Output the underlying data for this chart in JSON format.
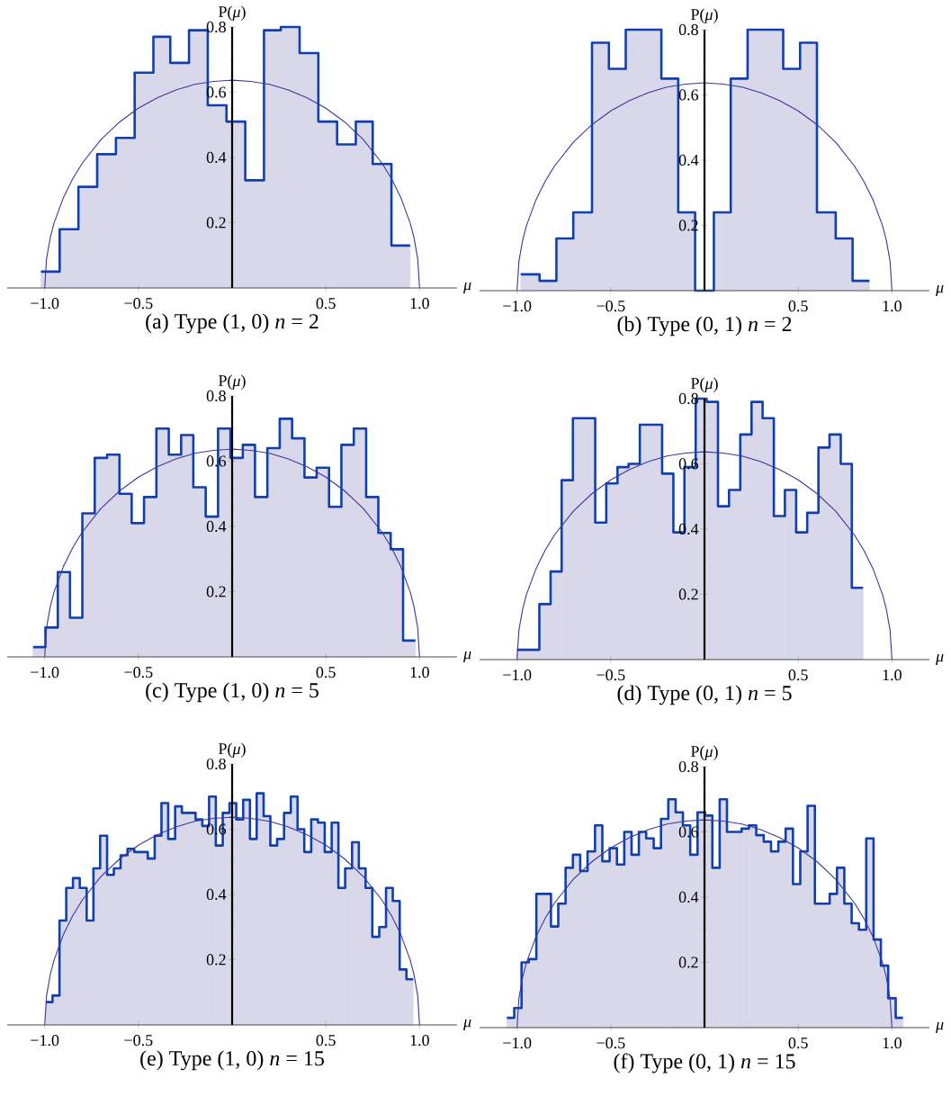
{
  "chart_data": [
    {
      "type": "histogram",
      "title": "(a) Type (1, 0) *n* = 2",
      "xlabel": "*μ*",
      "ylabel": "P(*μ*)",
      "xlim": [
        -1.2,
        1.2
      ],
      "ylim": [
        0,
        0.8
      ],
      "xticks": [
        {
          "value": -1.0,
          "label": "−1.0"
        },
        {
          "value": -0.5,
          "label": "−0.5"
        },
        {
          "value": 0.5,
          "label": "0.5"
        },
        {
          "value": 1.0,
          "label": "1.0"
        }
      ],
      "yticks": [
        0.2,
        0.4,
        0.6,
        0.8
      ],
      "series": [
        {
          "type": "histogram",
          "color": "#d8d8ea",
          "bins": [
            -1.02,
            -0.92,
            -0.82,
            -0.72,
            -0.62,
            -0.52,
            -0.42,
            -0.33,
            -0.23,
            -0.13,
            -0.03,
            0.07,
            0.17,
            0.26,
            0.36,
            0.46,
            0.56,
            0.66,
            0.75,
            0.85,
            0.95
          ],
          "values": [
            0.05,
            0.18,
            0.31,
            0.41,
            0.46,
            0.66,
            0.77,
            0.69,
            0.79,
            0.56,
            0.51,
            0.33,
            0.79,
            0.8,
            0.72,
            0.51,
            0.44,
            0.51,
            0.38,
            0.13
          ]
        },
        {
          "type": "step",
          "color": "#1040b0",
          "x": [
            -1.02,
            -0.92,
            -0.82,
            -0.72,
            -0.62,
            -0.52,
            -0.42,
            -0.33,
            -0.23,
            -0.13,
            -0.03,
            0.07,
            0.17,
            0.26,
            0.36,
            0.46,
            0.56,
            0.66,
            0.75,
            0.85,
            0.95
          ],
          "values": [
            0.05,
            0.18,
            0.31,
            0.41,
            0.46,
            0.66,
            0.77,
            0.69,
            0.79,
            0.56,
            0.51,
            0.33,
            0.79,
            0.8,
            0.72,
            0.51,
            0.44,
            0.51,
            0.38,
            0.13,
            0.13
          ]
        },
        {
          "type": "line",
          "color": "#3838a0",
          "x": [
            -1,
            -0.99,
            -0.97,
            -0.95,
            -0.9,
            -0.85,
            -0.8,
            -0.7,
            -0.6,
            -0.5,
            -0.4,
            -0.3,
            -0.2,
            -0.1,
            0,
            0.1,
            0.2,
            0.3,
            0.4,
            0.5,
            0.6,
            0.7,
            0.8,
            0.85,
            0.9,
            0.95,
            0.97,
            0.99,
            1
          ],
          "values": [
            0,
            0.09,
            0.155,
            0.199,
            0.277,
            0.335,
            0.382,
            0.455,
            0.509,
            0.551,
            0.583,
            0.607,
            0.624,
            0.633,
            0.637,
            0.633,
            0.624,
            0.607,
            0.583,
            0.551,
            0.509,
            0.455,
            0.382,
            0.335,
            0.277,
            0.199,
            0.155,
            0.09,
            0
          ]
        }
      ]
    },
    {
      "type": "histogram",
      "title": "(b) Type (0, 1) *n* = 2",
      "xlabel": "*μ*",
      "ylabel": "P(*μ*)",
      "xlim": [
        -1.2,
        1.2
      ],
      "ylim": [
        0,
        0.8
      ],
      "xticks": [
        {
          "value": -1.0,
          "label": "−1.0"
        },
        {
          "value": -0.5,
          "label": "−0.5"
        },
        {
          "value": 0.5,
          "label": "0.5"
        },
        {
          "value": 1.0,
          "label": "1.0"
        }
      ],
      "yticks": [
        0.2,
        0.4,
        0.6,
        0.8
      ],
      "series": [
        {
          "type": "histogram",
          "color": "#d8d8ea",
          "bins": [
            -0.98,
            -0.88,
            -0.79,
            -0.7,
            -0.6,
            -0.51,
            -0.42,
            -0.33,
            -0.23,
            -0.14,
            -0.05,
            0.05,
            0.14,
            0.23,
            0.33,
            0.42,
            0.51,
            0.6,
            0.7,
            0.79,
            0.88
          ],
          "values": [
            0.05,
            0.03,
            0.16,
            0.24,
            0.76,
            0.68,
            0.8,
            0.8,
            0.65,
            0.24,
            0,
            0.24,
            0.65,
            0.8,
            0.8,
            0.68,
            0.76,
            0.24,
            0.16,
            0.03
          ]
        },
        {
          "type": "step",
          "color": "#1040b0",
          "x": [
            -0.98,
            -0.88,
            -0.79,
            -0.7,
            -0.6,
            -0.51,
            -0.42,
            -0.33,
            -0.23,
            -0.14,
            -0.05,
            0.05,
            0.14,
            0.23,
            0.33,
            0.42,
            0.51,
            0.6,
            0.7,
            0.79,
            0.88
          ],
          "values": [
            0.05,
            0.03,
            0.16,
            0.24,
            0.76,
            0.68,
            0.8,
            0.8,
            0.65,
            0.24,
            0,
            0.24,
            0.65,
            0.8,
            0.8,
            0.68,
            0.76,
            0.24,
            0.16,
            0.03,
            0.03
          ]
        },
        {
          "type": "line",
          "color": "#3838a0",
          "x": [
            -1,
            -0.99,
            -0.97,
            -0.95,
            -0.9,
            -0.85,
            -0.8,
            -0.7,
            -0.6,
            -0.5,
            -0.4,
            -0.3,
            -0.2,
            -0.1,
            0,
            0.1,
            0.2,
            0.3,
            0.4,
            0.5,
            0.6,
            0.7,
            0.8,
            0.85,
            0.9,
            0.95,
            0.97,
            0.99,
            1
          ],
          "values": [
            0,
            0.09,
            0.155,
            0.199,
            0.277,
            0.335,
            0.382,
            0.455,
            0.509,
            0.551,
            0.583,
            0.607,
            0.624,
            0.633,
            0.637,
            0.633,
            0.624,
            0.607,
            0.583,
            0.551,
            0.509,
            0.455,
            0.382,
            0.335,
            0.277,
            0.199,
            0.155,
            0.09,
            0
          ]
        }
      ]
    },
    {
      "type": "histogram",
      "title": "(c) Type (1, 0) *n* = 5",
      "xlabel": "*μ*",
      "ylabel": "P(*μ*)",
      "xlim": [
        -1.2,
        1.2
      ],
      "ylim": [
        0,
        0.8
      ],
      "xticks": [
        {
          "value": -1.0,
          "label": "−1.0"
        },
        {
          "value": -0.5,
          "label": "−0.5"
        },
        {
          "value": 0.5,
          "label": "0.5"
        },
        {
          "value": 1.0,
          "label": "1.0"
        }
      ],
      "yticks": [
        0.2,
        0.4,
        0.6,
        0.8
      ],
      "series": [
        {
          "type": "histogram",
          "color": "#d8d8ea",
          "bins": [
            -1.062,
            -0.996,
            -0.93,
            -0.865,
            -0.799,
            -0.733,
            -0.667,
            -0.601,
            -0.536,
            -0.47,
            -0.404,
            -0.338,
            -0.272,
            -0.207,
            -0.141,
            -0.075,
            -0.009,
            0.057,
            0.122,
            0.188,
            0.254,
            0.32,
            0.386,
            0.451,
            0.517,
            0.583,
            0.649,
            0.715,
            0.78,
            0.846,
            0.912,
            0.978
          ],
          "values": [
            0.03,
            0.09,
            0.26,
            0.12,
            0.44,
            0.61,
            0.62,
            0.5,
            0.41,
            0.49,
            0.7,
            0.62,
            0.68,
            0.52,
            0.43,
            0.7,
            0.61,
            0.65,
            0.49,
            0.64,
            0.73,
            0.67,
            0.55,
            0.58,
            0.46,
            0.65,
            0.7,
            0.49,
            0.38,
            0.33,
            0.05
          ]
        },
        {
          "type": "step",
          "color": "#1040b0",
          "x": [
            -1.062,
            -0.996,
            -0.93,
            -0.865,
            -0.799,
            -0.733,
            -0.667,
            -0.601,
            -0.536,
            -0.47,
            -0.404,
            -0.338,
            -0.272,
            -0.207,
            -0.141,
            -0.075,
            -0.009,
            0.057,
            0.122,
            0.188,
            0.254,
            0.32,
            0.386,
            0.451,
            0.517,
            0.583,
            0.649,
            0.715,
            0.78,
            0.846,
            0.912,
            0.978
          ],
          "values": [
            0.03,
            0.09,
            0.26,
            0.12,
            0.44,
            0.61,
            0.62,
            0.5,
            0.41,
            0.49,
            0.7,
            0.62,
            0.68,
            0.52,
            0.43,
            0.7,
            0.61,
            0.65,
            0.49,
            0.64,
            0.73,
            0.67,
            0.55,
            0.58,
            0.46,
            0.65,
            0.7,
            0.49,
            0.38,
            0.33,
            0.05,
            0.05
          ]
        },
        {
          "type": "line",
          "color": "#3838a0",
          "x": [
            -1,
            -0.99,
            -0.97,
            -0.95,
            -0.9,
            -0.85,
            -0.8,
            -0.7,
            -0.6,
            -0.5,
            -0.4,
            -0.3,
            -0.2,
            -0.1,
            0,
            0.1,
            0.2,
            0.3,
            0.4,
            0.5,
            0.6,
            0.7,
            0.8,
            0.85,
            0.9,
            0.95,
            0.97,
            0.99,
            1
          ],
          "values": [
            0,
            0.09,
            0.155,
            0.199,
            0.277,
            0.335,
            0.382,
            0.455,
            0.509,
            0.551,
            0.583,
            0.607,
            0.624,
            0.633,
            0.637,
            0.633,
            0.624,
            0.607,
            0.583,
            0.551,
            0.509,
            0.455,
            0.382,
            0.335,
            0.277,
            0.199,
            0.155,
            0.09,
            0
          ]
        }
      ]
    },
    {
      "type": "histogram",
      "title": "(d) Type (0, 1) *n* = 5",
      "xlabel": "*μ*",
      "ylabel": "P(*μ*)",
      "xlim": [
        -1.2,
        1.2
      ],
      "ylim": [
        0,
        0.8
      ],
      "xticks": [
        {
          "value": -1.0,
          "label": "−1.0"
        },
        {
          "value": -0.5,
          "label": "−0.5"
        },
        {
          "value": 0.5,
          "label": "0.5"
        },
        {
          "value": 1.0,
          "label": "1.0"
        }
      ],
      "yticks": [
        0.2,
        0.4,
        0.6,
        0.8
      ],
      "series": [
        {
          "type": "histogram",
          "color": "#d8d8ea",
          "bins": [
            -1.0,
            -0.94,
            -0.881,
            -0.821,
            -0.762,
            -0.702,
            -0.643,
            -0.583,
            -0.524,
            -0.464,
            -0.405,
            -0.345,
            -0.285,
            -0.226,
            -0.166,
            -0.107,
            -0.047,
            0.012,
            0.072,
            0.131,
            0.191,
            0.251,
            0.31,
            0.37,
            0.429,
            0.489,
            0.548,
            0.608,
            0.667,
            0.727,
            0.786,
            0.846
          ],
          "values": [
            0.03,
            0.03,
            0.17,
            0.27,
            0.55,
            0.74,
            0.74,
            0.42,
            0.54,
            0.59,
            0.6,
            0.72,
            0.72,
            0.57,
            0.39,
            0.59,
            0.8,
            0.79,
            0.47,
            0.52,
            0.69,
            0.79,
            0.74,
            0.44,
            0.52,
            0.39,
            0.45,
            0.65,
            0.69,
            0.6,
            0.22
          ]
        },
        {
          "type": "step",
          "color": "#1040b0",
          "x": [
            -1.0,
            -0.94,
            -0.881,
            -0.821,
            -0.762,
            -0.702,
            -0.643,
            -0.583,
            -0.524,
            -0.464,
            -0.405,
            -0.345,
            -0.285,
            -0.226,
            -0.166,
            -0.107,
            -0.047,
            0.012,
            0.072,
            0.131,
            0.191,
            0.251,
            0.31,
            0.37,
            0.429,
            0.489,
            0.548,
            0.608,
            0.667,
            0.727,
            0.786,
            0.846
          ],
          "values": [
            0.03,
            0.03,
            0.17,
            0.27,
            0.55,
            0.74,
            0.74,
            0.42,
            0.54,
            0.59,
            0.6,
            0.72,
            0.72,
            0.57,
            0.39,
            0.59,
            0.8,
            0.79,
            0.47,
            0.52,
            0.69,
            0.79,
            0.74,
            0.44,
            0.52,
            0.39,
            0.45,
            0.65,
            0.69,
            0.6,
            0.22,
            0.22
          ]
        },
        {
          "type": "line",
          "color": "#3838a0",
          "x": [
            -1,
            -0.99,
            -0.97,
            -0.95,
            -0.9,
            -0.85,
            -0.8,
            -0.7,
            -0.6,
            -0.5,
            -0.4,
            -0.3,
            -0.2,
            -0.1,
            0,
            0.1,
            0.2,
            0.3,
            0.4,
            0.5,
            0.6,
            0.7,
            0.8,
            0.85,
            0.9,
            0.95,
            0.97,
            0.99,
            1
          ],
          "values": [
            0,
            0.09,
            0.155,
            0.199,
            0.277,
            0.335,
            0.382,
            0.455,
            0.509,
            0.551,
            0.583,
            0.607,
            0.624,
            0.633,
            0.637,
            0.633,
            0.624,
            0.607,
            0.583,
            0.551,
            0.509,
            0.455,
            0.382,
            0.335,
            0.277,
            0.199,
            0.155,
            0.09,
            0
          ]
        }
      ]
    },
    {
      "type": "histogram",
      "title": "(e) Type (1, 0) *n* = 15",
      "xlabel": "*μ*",
      "ylabel": "P(*μ*)",
      "xlim": [
        -1.2,
        1.2
      ],
      "ylim": [
        0,
        0.8
      ],
      "xticks": [
        {
          "value": -1.0,
          "label": "−1.0"
        },
        {
          "value": -0.5,
          "label": "−0.5"
        },
        {
          "value": 0.5,
          "label": "0.5"
        },
        {
          "value": 1.0,
          "label": "1.0"
        }
      ],
      "yticks": [
        0.2,
        0.4,
        0.6,
        0.8
      ],
      "series": [
        {
          "type": "histogram",
          "color": "#d8d8ea",
          "bins": [
            -0.994,
            -0.958,
            -0.921,
            -0.885,
            -0.849,
            -0.813,
            -0.776,
            -0.74,
            -0.704,
            -0.667,
            -0.631,
            -0.595,
            -0.558,
            -0.522,
            -0.486,
            -0.45,
            -0.413,
            -0.377,
            -0.341,
            -0.304,
            -0.268,
            -0.232,
            -0.195,
            -0.159,
            -0.123,
            -0.087,
            -0.05,
            -0.014,
            0.022,
            0.059,
            0.095,
            0.131,
            0.168,
            0.204,
            0.24,
            0.277,
            0.313,
            0.349,
            0.385,
            0.422,
            0.458,
            0.494,
            0.531,
            0.567,
            0.603,
            0.64,
            0.676,
            0.712,
            0.748,
            0.785,
            0.821,
            0.857,
            0.894,
            0.93,
            0.966
          ],
          "values": [
            0.07,
            0.09,
            0.32,
            0.42,
            0.45,
            0.42,
            0.32,
            0.48,
            0.58,
            0.46,
            0.48,
            0.52,
            0.54,
            0.53,
            0.53,
            0.51,
            0.58,
            0.68,
            0.57,
            0.67,
            0.65,
            0.65,
            0.63,
            0.61,
            0.7,
            0.55,
            0.65,
            0.68,
            0.63,
            0.69,
            0.57,
            0.71,
            0.64,
            0.55,
            0.57,
            0.65,
            0.7,
            0.6,
            0.53,
            0.63,
            0.62,
            0.53,
            0.62,
            0.42,
            0.48,
            0.56,
            0.48,
            0.42,
            0.27,
            0.3,
            0.42,
            0.38,
            0.17,
            0.14
          ]
        },
        {
          "type": "step",
          "color": "#1040b0",
          "x": [
            -0.994,
            -0.958,
            -0.921,
            -0.885,
            -0.849,
            -0.813,
            -0.776,
            -0.74,
            -0.704,
            -0.667,
            -0.631,
            -0.595,
            -0.558,
            -0.522,
            -0.486,
            -0.45,
            -0.413,
            -0.377,
            -0.341,
            -0.304,
            -0.268,
            -0.232,
            -0.195,
            -0.159,
            -0.123,
            -0.087,
            -0.05,
            -0.014,
            0.022,
            0.059,
            0.095,
            0.131,
            0.168,
            0.204,
            0.24,
            0.277,
            0.313,
            0.349,
            0.385,
            0.422,
            0.458,
            0.494,
            0.531,
            0.567,
            0.603,
            0.64,
            0.676,
            0.712,
            0.748,
            0.785,
            0.821,
            0.857,
            0.894,
            0.93,
            0.966
          ],
          "values": [
            0.07,
            0.09,
            0.32,
            0.42,
            0.45,
            0.42,
            0.32,
            0.48,
            0.58,
            0.46,
            0.48,
            0.52,
            0.54,
            0.53,
            0.53,
            0.51,
            0.58,
            0.68,
            0.57,
            0.67,
            0.65,
            0.65,
            0.63,
            0.61,
            0.7,
            0.55,
            0.65,
            0.68,
            0.63,
            0.69,
            0.57,
            0.71,
            0.64,
            0.55,
            0.57,
            0.65,
            0.7,
            0.6,
            0.53,
            0.63,
            0.62,
            0.53,
            0.62,
            0.42,
            0.48,
            0.56,
            0.48,
            0.42,
            0.27,
            0.3,
            0.42,
            0.38,
            0.17,
            0.14,
            0.14
          ]
        },
        {
          "type": "line",
          "color": "#3838a0",
          "x": [
            -1,
            -0.99,
            -0.97,
            -0.95,
            -0.9,
            -0.85,
            -0.8,
            -0.7,
            -0.6,
            -0.5,
            -0.4,
            -0.3,
            -0.2,
            -0.1,
            0,
            0.1,
            0.2,
            0.3,
            0.4,
            0.5,
            0.6,
            0.7,
            0.8,
            0.85,
            0.9,
            0.95,
            0.97,
            0.99,
            1
          ],
          "values": [
            0,
            0.09,
            0.155,
            0.199,
            0.277,
            0.335,
            0.382,
            0.455,
            0.509,
            0.551,
            0.583,
            0.607,
            0.624,
            0.633,
            0.637,
            0.633,
            0.624,
            0.607,
            0.583,
            0.551,
            0.509,
            0.455,
            0.382,
            0.335,
            0.277,
            0.199,
            0.155,
            0.09,
            0
          ]
        }
      ]
    },
    {
      "type": "histogram",
      "title": "(f) Type (0, 1) *n* = 15",
      "xlabel": "*μ*",
      "ylabel": "P(*μ*)",
      "xlim": [
        -1.2,
        1.2
      ],
      "ylim": [
        0,
        0.8
      ],
      "xticks": [
        {
          "value": -1.0,
          "label": "−1.0"
        },
        {
          "value": -0.5,
          "label": "−0.5"
        },
        {
          "value": 0.5,
          "label": "0.5"
        },
        {
          "value": 1.0,
          "label": "1.0"
        }
      ],
      "yticks": [
        0.2,
        0.4,
        0.6,
        0.8
      ],
      "series": [
        {
          "type": "histogram",
          "color": "#d8d8ea",
          "bins": [
            -1.054,
            -1.015,
            -0.976,
            -0.937,
            -0.897,
            -0.858,
            -0.819,
            -0.78,
            -0.741,
            -0.702,
            -0.663,
            -0.624,
            -0.584,
            -0.545,
            -0.506,
            -0.467,
            -0.428,
            -0.389,
            -0.35,
            -0.311,
            -0.271,
            -0.232,
            -0.193,
            -0.154,
            -0.115,
            -0.076,
            -0.037,
            0.003,
            0.042,
            0.081,
            0.12,
            0.159,
            0.198,
            0.237,
            0.276,
            0.316,
            0.355,
            0.394,
            0.433,
            0.472,
            0.511,
            0.55,
            0.589,
            0.628,
            0.668,
            0.707,
            0.746,
            0.785,
            0.824,
            0.863,
            0.902,
            0.941,
            0.98,
            1.02,
            1.059
          ],
          "values": [
            0.03,
            0.06,
            0.2,
            0.21,
            0.41,
            0.41,
            0.31,
            0.38,
            0.49,
            0.53,
            0.48,
            0.54,
            0.62,
            0.51,
            0.55,
            0.5,
            0.6,
            0.53,
            0.6,
            0.58,
            0.55,
            0.64,
            0.7,
            0.66,
            0.62,
            0.53,
            0.66,
            0.65,
            0.49,
            0.7,
            0.6,
            0.6,
            0.61,
            0.62,
            0.59,
            0.57,
            0.54,
            0.57,
            0.61,
            0.44,
            0.54,
            0.68,
            0.38,
            0.38,
            0.41,
            0.49,
            0.38,
            0.32,
            0.3,
            0.58,
            0.27,
            0.19,
            0.09,
            0.03
          ]
        },
        {
          "type": "step",
          "color": "#1040b0",
          "x": [
            -1.054,
            -1.015,
            -0.976,
            -0.937,
            -0.897,
            -0.858,
            -0.819,
            -0.78,
            -0.741,
            -0.702,
            -0.663,
            -0.624,
            -0.584,
            -0.545,
            -0.506,
            -0.467,
            -0.428,
            -0.389,
            -0.35,
            -0.311,
            -0.271,
            -0.232,
            -0.193,
            -0.154,
            -0.115,
            -0.076,
            -0.037,
            0.003,
            0.042,
            0.081,
            0.12,
            0.159,
            0.198,
            0.237,
            0.276,
            0.316,
            0.355,
            0.394,
            0.433,
            0.472,
            0.511,
            0.55,
            0.589,
            0.628,
            0.668,
            0.707,
            0.746,
            0.785,
            0.824,
            0.863,
            0.902,
            0.941,
            0.98,
            1.02,
            1.059
          ],
          "values": [
            0.03,
            0.06,
            0.2,
            0.21,
            0.41,
            0.41,
            0.31,
            0.38,
            0.49,
            0.53,
            0.48,
            0.54,
            0.62,
            0.51,
            0.55,
            0.5,
            0.6,
            0.53,
            0.6,
            0.58,
            0.55,
            0.64,
            0.7,
            0.66,
            0.62,
            0.53,
            0.66,
            0.65,
            0.49,
            0.7,
            0.6,
            0.6,
            0.61,
            0.62,
            0.59,
            0.57,
            0.54,
            0.57,
            0.61,
            0.44,
            0.54,
            0.68,
            0.38,
            0.38,
            0.41,
            0.49,
            0.38,
            0.32,
            0.3,
            0.58,
            0.27,
            0.19,
            0.09,
            0.03,
            0.03
          ]
        },
        {
          "type": "line",
          "color": "#3838a0",
          "x": [
            -1,
            -0.99,
            -0.97,
            -0.95,
            -0.9,
            -0.85,
            -0.8,
            -0.7,
            -0.6,
            -0.5,
            -0.4,
            -0.3,
            -0.2,
            -0.1,
            0,
            0.1,
            0.2,
            0.3,
            0.4,
            0.5,
            0.6,
            0.7,
            0.8,
            0.85,
            0.9,
            0.95,
            0.97,
            0.99,
            1
          ],
          "values": [
            0,
            0.09,
            0.155,
            0.199,
            0.277,
            0.335,
            0.382,
            0.455,
            0.509,
            0.551,
            0.583,
            0.607,
            0.624,
            0.633,
            0.637,
            0.633,
            0.624,
            0.607,
            0.583,
            0.551,
            0.509,
            0.455,
            0.382,
            0.335,
            0.277,
            0.199,
            0.155,
            0.09,
            0
          ]
        }
      ]
    }
  ]
}
